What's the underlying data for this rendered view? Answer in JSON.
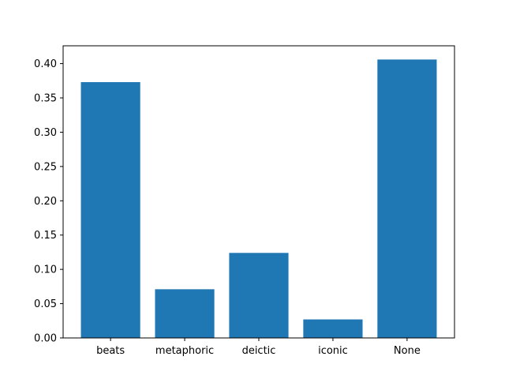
{
  "chart_data": {
    "type": "bar",
    "categories": [
      "beats",
      "metaphoric",
      "deictic",
      "iconic",
      "None"
    ],
    "values": [
      0.373,
      0.071,
      0.124,
      0.027,
      0.406
    ],
    "ylim": [
      0,
      0.426
    ],
    "yticks": [
      "0.00",
      "0.05",
      "0.10",
      "0.15",
      "0.20",
      "0.25",
      "0.30",
      "0.35",
      "0.40"
    ],
    "grid": false,
    "bar_color": "#1f77b4"
  }
}
